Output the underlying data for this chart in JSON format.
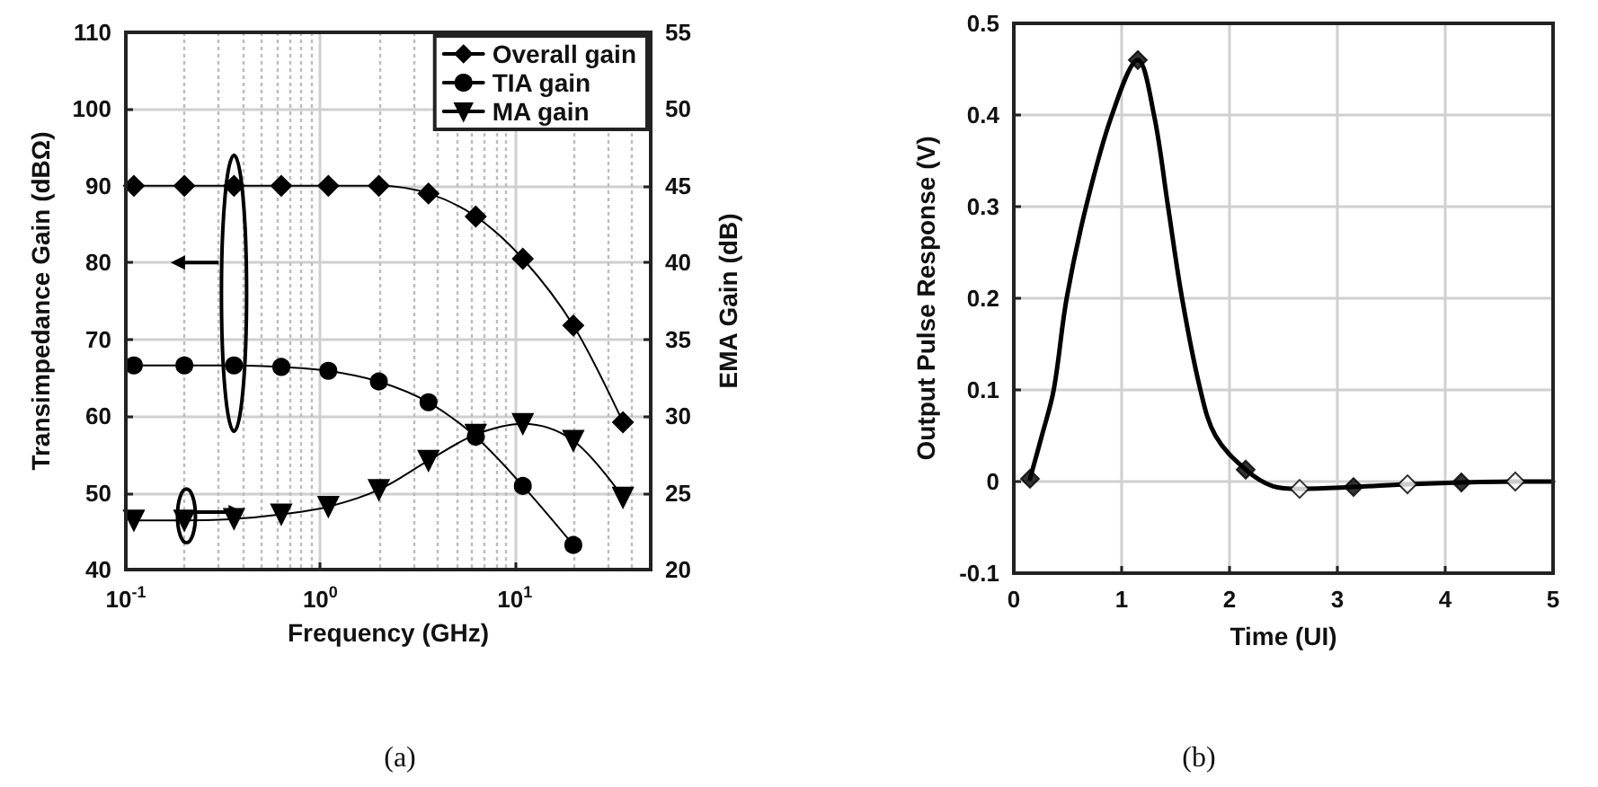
{
  "chart_data": [
    {
      "type": "line",
      "xlabel": "Frequency (GHz)",
      "ylabel": "Transimpedance Gain (dBΩ)",
      "y2label": "EMA Gain (dB)",
      "log": "x",
      "grid": true,
      "legend": "top right",
      "annotations": [
        "(a)"
      ],
      "x": [
        0.11,
        0.2,
        0.36,
        0.63,
        1.1,
        2,
        3.6,
        6.3,
        11,
        20,
        36
      ],
      "xlim": [
        0.1,
        50
      ],
      "xticks": [
        {
          "value": 0.1,
          "label": "10$^{-1}$"
        },
        {
          "value": 1,
          "label": "10$^{0}$"
        },
        {
          "value": 10,
          "label": "10$^{1}$"
        }
      ],
      "ylim": [
        40,
        110
      ],
      "yticks": [
        40,
        50,
        60,
        70,
        80,
        90,
        100,
        110
      ],
      "y2lim": [
        20,
        55
      ],
      "y2ticks": [
        20,
        25,
        30,
        35,
        40,
        45,
        50,
        55
      ],
      "series": [
        {
          "name": "Overall gain",
          "color": "#000000",
          "marker": "diamond",
          "values": [
            90,
            90,
            90,
            90,
            90,
            90,
            89,
            86,
            80.5,
            71.8,
            59.2
          ]
        },
        {
          "name": "TIA gain",
          "color": "#000000",
          "marker": "circle",
          "values": [
            66.6,
            66.6,
            66.6,
            66.4,
            65.9,
            64.5,
            61.8,
            57.3,
            50.9,
            43.2,
            null
          ]
        },
        {
          "name": "MA gain",
          "color": "#000000",
          "marker": "triangle",
          "axis": "y2",
          "values": [
            23.2,
            23.2,
            23.3,
            23.6,
            24.1,
            25.2,
            27.1,
            28.8,
            29.5,
            28.4,
            24.7
          ]
        }
      ]
    },
    {
      "type": "line",
      "xlabel": "Time (UI)",
      "ylabel": "Output Pulse Response (V)",
      "grid": true,
      "annotations": [
        "(b)"
      ],
      "xlim": [
        0,
        5
      ],
      "xticks": [
        0,
        1,
        2,
        3,
        4,
        5
      ],
      "ylim": [
        -0.1,
        0.5
      ],
      "yticks": [
        -0.1,
        0,
        0.1,
        0.2,
        0.3,
        0.4,
        0.5
      ],
      "series": [
        {
          "color": "#000000",
          "marker": "none",
          "x": [
            0.15,
            0.26,
            0.37,
            0.49,
            0.67,
            0.91,
            1.15,
            1.3,
            1.43,
            1.56,
            1.73,
            1.87,
            2.15,
            2.4,
            2.65,
            3.15,
            3.65,
            4.15,
            4.65,
            5
          ],
          "values": [
            0.003,
            0.05,
            0.1,
            0.2,
            0.3,
            0.4,
            0.46,
            0.4,
            0.3,
            0.2,
            0.1,
            0.05,
            0.013,
            -0.005,
            -0.008,
            -0.006,
            -0.003,
            -0.001,
            0,
            0
          ]
        },
        {
          "type": "scatter",
          "color": "#000000",
          "marker": "diamond",
          "x": [
            0.15,
            1.15,
            2.15,
            3.15,
            4.15
          ],
          "values": [
            0.003,
            0.46,
            0.013,
            -0.006,
            -0.001
          ]
        },
        {
          "type": "scatter",
          "color": "#ffffff",
          "marker": "diamond",
          "x": [
            2.65,
            3.65,
            4.65
          ],
          "values": [
            -0.008,
            -0.003,
            0
          ]
        }
      ]
    }
  ]
}
